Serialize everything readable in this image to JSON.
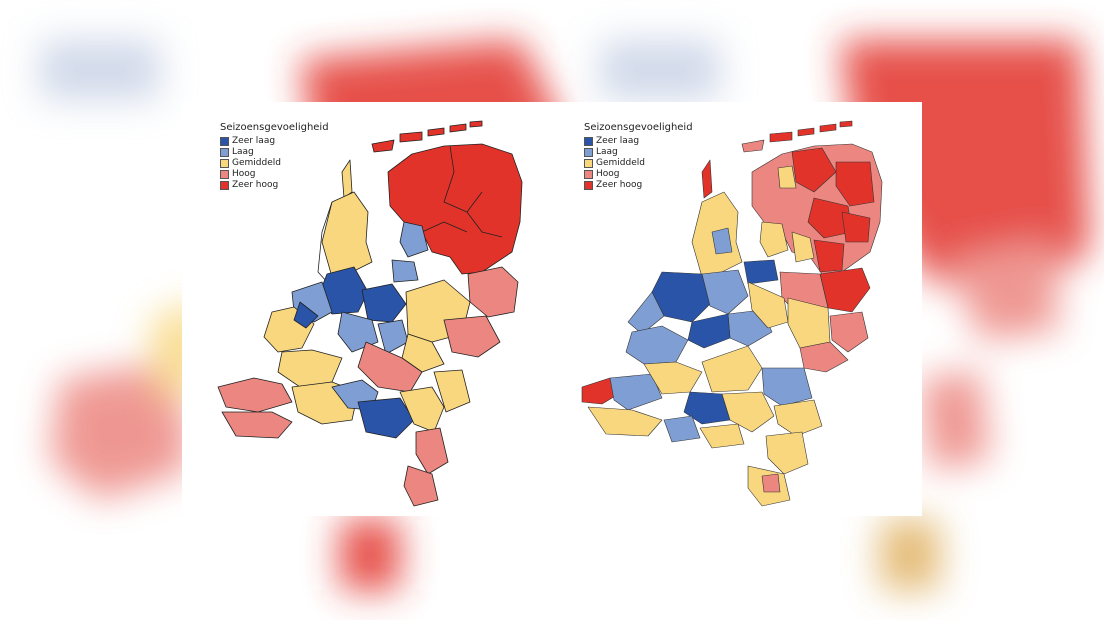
{
  "maps": [
    {
      "legend": {
        "title": "Seizoensgevoeligheid",
        "items": [
          {
            "label": "Zeer laag",
            "color": "#2a54a8"
          },
          {
            "label": "Laag",
            "color": "#7f9fd4"
          },
          {
            "label": "Gemiddeld",
            "color": "#f8d77e"
          },
          {
            "label": "Hoog",
            "color": "#ec8680"
          },
          {
            "label": "Zeer hoog",
            "color": "#e2332b"
          }
        ]
      }
    },
    {
      "legend": {
        "title": "Seizoensgevoeligheid",
        "items": [
          {
            "label": "Zeer laag",
            "color": "#2a54a8"
          },
          {
            "label": "Laag",
            "color": "#7f9fd4"
          },
          {
            "label": "Gemiddeld",
            "color": "#f8d77e"
          },
          {
            "label": "Hoog",
            "color": "#ec8680"
          },
          {
            "label": "Zeer hoog",
            "color": "#e2332b"
          }
        ]
      }
    }
  ]
}
